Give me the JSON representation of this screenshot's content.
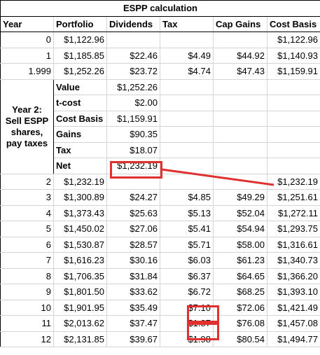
{
  "title": "ESPP calculation",
  "headers": [
    "Year",
    "Portfolio",
    "Dividends",
    "Tax",
    "Cap Gains",
    "Cost Basis"
  ],
  "top_rows": [
    [
      "0",
      "$1,122.96",
      "",
      "",
      "",
      "$1,122.96"
    ],
    [
      "1",
      "$1,185.85",
      "$22.46",
      "$4.49",
      "$44.92",
      "$1,140.93"
    ],
    [
      "1.999",
      "$1,252.26",
      "$23.72",
      "$4.74",
      "$47.43",
      "$1,159.91"
    ]
  ],
  "year2_label": "Year 2: Sell ESPP shares, pay taxes",
  "sale_rows": [
    {
      "label": "Value",
      "value": "$1,252.26"
    },
    {
      "label": "t-cost",
      "value": "$2.00"
    },
    {
      "label": "Cost Basis",
      "value": "$1,159.91"
    },
    {
      "label": "Gains",
      "value": "$90.35"
    },
    {
      "label": "Tax",
      "value": "$18.07"
    },
    {
      "label": "Net",
      "value": "$1,232.19"
    }
  ],
  "bottom_rows": [
    [
      "2",
      "$1,232.19",
      "",
      "",
      "",
      "$1,232.19"
    ],
    [
      "3",
      "$1,300.89",
      "$24.27",
      "$4.85",
      "$49.29",
      "$1,251.61"
    ],
    [
      "4",
      "$1,373.43",
      "$25.63",
      "$5.13",
      "$52.04",
      "$1,272.11"
    ],
    [
      "5",
      "$1,450.02",
      "$27.06",
      "$5.41",
      "$54.94",
      "$1,293.75"
    ],
    [
      "6",
      "$1,530.87",
      "$28.57",
      "$5.71",
      "$58.00",
      "$1,316.61"
    ],
    [
      "7",
      "$1,616.23",
      "$30.16",
      "$6.03",
      "$61.23",
      "$1,340.73"
    ],
    [
      "8",
      "$1,706.35",
      "$31.84",
      "$6.37",
      "$64.65",
      "$1,366.20"
    ],
    [
      "9",
      "$1,801.50",
      "$33.62",
      "$6.72",
      "$68.25",
      "$1,393.10"
    ],
    [
      "10",
      "$1,901.95",
      "$35.49",
      "$7.10",
      "$72.06",
      "$1,421.49"
    ],
    [
      "11",
      "$2,013.62",
      "$37.47",
      "$1.87",
      "$76.08",
      "$1,457.08"
    ],
    [
      "12",
      "$2,131.85",
      "$39.67",
      "$1.98",
      "$80.54",
      "$1,494.77"
    ]
  ],
  "highlight_color": "#e03030"
}
